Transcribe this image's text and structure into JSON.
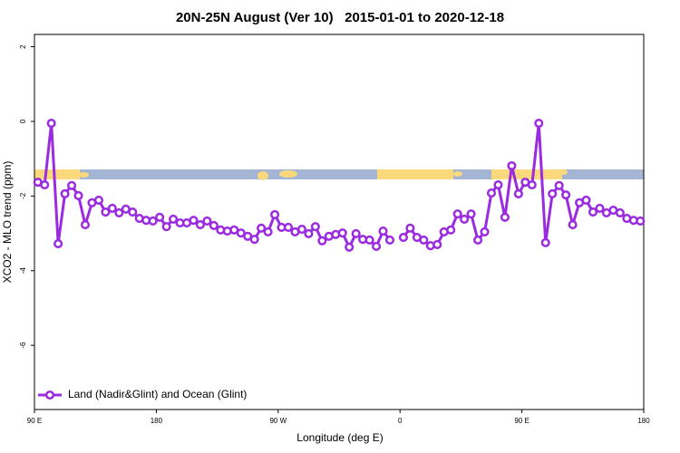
{
  "chart_data": {
    "type": "line",
    "title": "20N-25N August (Ver 10)   2015-01-01 to 2020-12-18",
    "x_label": "Longitude (deg E)",
    "y_label": "XCO2 - MLO trend (ppm)",
    "xlim": [
      90,
      540
    ],
    "xticks": [
      {
        "value": 90,
        "label": "90 E"
      },
      180,
      {
        "value": 270,
        "label": "90 W"
      },
      {
        "value": 360,
        "label": "0"
      },
      {
        "value": 450,
        "label": "90 E"
      },
      {
        "value": 540,
        "label": "180"
      }
    ],
    "ylim": [
      -7.72,
      2.33
    ],
    "yticks": [
      2,
      0,
      -2,
      -4,
      -6
    ],
    "legend": "bottom-left",
    "x": [
      92.5,
      97.5,
      102.5,
      107.5,
      112.5,
      117.5,
      122.5,
      127.5,
      132.5,
      137.5,
      142.5,
      147.5,
      152.5,
      157.5,
      162.5,
      167.5,
      172.5,
      177.5,
      182.5,
      187.5,
      192.5,
      197.5,
      202.5,
      207.5,
      212.5,
      217.5,
      222.5,
      227.5,
      232.5,
      237.5,
      242.5,
      247.5,
      252.5,
      257.5,
      262.5,
      267.5,
      272.5,
      277.5,
      282.5,
      287.5,
      292.5,
      297.5,
      302.5,
      307.5,
      312.5,
      317.5,
      322.5,
      327.5,
      332.5,
      337.5,
      342.5,
      347.5,
      352.5,
      357.5,
      362.5,
      367.5,
      372.5,
      377.5,
      382.5,
      387.5,
      392.5,
      397.5,
      402.5,
      407.5,
      412.5,
      417.5,
      422.5,
      427.5,
      432.5,
      437.5,
      442.5,
      447.5,
      452.5,
      457.5,
      462.5,
      467.5,
      472.5,
      477.5,
      482.5,
      487.5,
      492.5,
      497.5,
      502.5,
      507.5,
      512.5,
      517.5,
      522.5,
      527.5,
      532.5,
      537.5
    ],
    "series": [
      {
        "name": "Land (Nadir&Glint) and Ocean (Glint)",
        "color": "#9b2be0",
        "values": [
          -1.63,
          -1.7,
          -0.05,
          -3.28,
          -1.94,
          -1.72,
          -1.99,
          -2.77,
          -2.18,
          -2.11,
          -2.43,
          -2.33,
          -2.45,
          -2.35,
          -2.43,
          -2.6,
          -2.65,
          -2.67,
          -2.57,
          -2.82,
          -2.62,
          -2.72,
          -2.72,
          -2.65,
          -2.77,
          -2.67,
          -2.79,
          -2.91,
          -2.94,
          -2.91,
          -2.99,
          -3.08,
          -3.16,
          -2.86,
          -2.96,
          -2.5,
          -2.84,
          -2.84,
          -2.96,
          -2.89,
          -3.01,
          -2.82,
          -3.2,
          -3.08,
          -3.03,
          -2.99,
          -3.37,
          -3.01,
          -3.16,
          -3.18,
          -3.35,
          -2.94,
          -3.18,
          null,
          -3.11,
          -2.86,
          -3.11,
          -3.18,
          -3.33,
          -3.3,
          -2.96,
          -2.91,
          -2.48,
          -2.62,
          -2.48,
          -3.18,
          -2.96,
          -1.92,
          -1.7,
          -2.57,
          -1.19,
          -1.94,
          -1.63,
          -1.7,
          -0.05,
          -3.25,
          -1.94,
          -1.72,
          -1.97,
          -2.77,
          -2.18,
          -2.11,
          -2.43,
          -2.33,
          -2.45,
          -2.38,
          -2.45,
          -2.6,
          -2.65,
          -2.67
        ]
      }
    ]
  }
}
